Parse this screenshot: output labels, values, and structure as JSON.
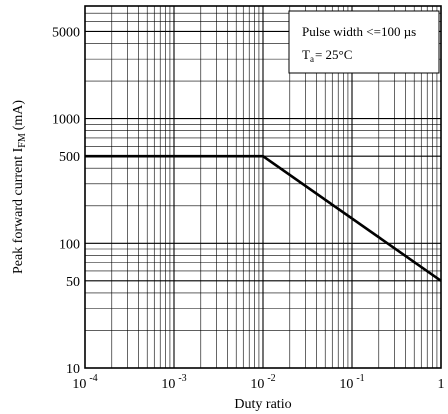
{
  "chart_data": {
    "type": "line",
    "xlabel": "Duty ratio",
    "ylabel_main": "Peak forward current I",
    "ylabel_sub": "FM",
    "ylabel_unit": "(mA)",
    "x_scale": "log",
    "y_scale": "log",
    "xlim": [
      0.0001,
      1
    ],
    "ylim": [
      10,
      8000
    ],
    "grid": true,
    "x_ticks": [
      {
        "value": 0.0001,
        "base": "10",
        "exp": "-4"
      },
      {
        "value": 0.001,
        "base": "10",
        "exp": "-3"
      },
      {
        "value": 0.01,
        "base": "10",
        "exp": "-2"
      },
      {
        "value": 0.1,
        "base": "10",
        "exp": "-1"
      },
      {
        "value": 1,
        "base": "1",
        "exp": ""
      }
    ],
    "y_ticks": [
      {
        "value": 10,
        "label": "10"
      },
      {
        "value": 50,
        "label": "50"
      },
      {
        "value": 100,
        "label": "100"
      },
      {
        "value": 500,
        "label": "500"
      },
      {
        "value": 1000,
        "label": "1000"
      },
      {
        "value": 5000,
        "label": "5000"
      }
    ],
    "series": [
      {
        "x": [
          0.0001,
          0.01,
          1
        ],
        "y": [
          500,
          500,
          50
        ]
      }
    ],
    "annotation": {
      "line1": "Pulse width <=100 µs",
      "t_main": "T",
      "t_sub": "a",
      "t_rest": "=  25°C"
    }
  }
}
